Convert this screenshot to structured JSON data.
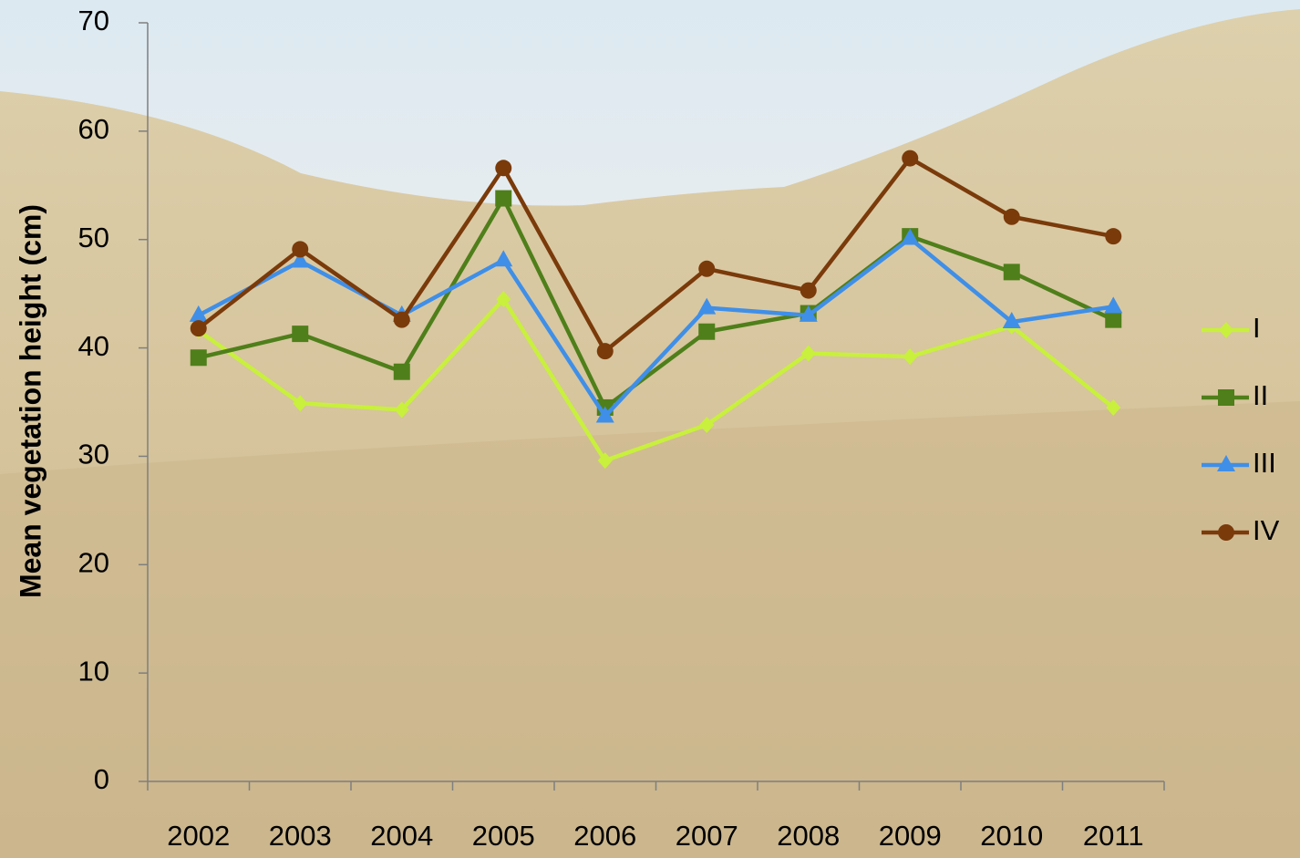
{
  "chart_data": {
    "type": "line",
    "y_label": "Mean vegetation height (cm)",
    "categories": [
      "2002",
      "2003",
      "2004",
      "2005",
      "2006",
      "2007",
      "2008",
      "2009",
      "2010",
      "2011"
    ],
    "series": [
      {
        "name": "I",
        "color": "#c8f03c",
        "marker": "diamond",
        "values": [
          41.6,
          34.9,
          34.3,
          44.5,
          29.6,
          32.9,
          39.5,
          39.2,
          42.0,
          34.5
        ]
      },
      {
        "name": "II",
        "color": "#4f7f1a",
        "marker": "square",
        "values": [
          39.1,
          41.3,
          37.8,
          53.8,
          34.5,
          41.5,
          43.2,
          50.3,
          47.0,
          42.6
        ]
      },
      {
        "name": "III",
        "color": "#3f8fe8",
        "marker": "triangle",
        "values": [
          43.0,
          48.0,
          43.0,
          48.1,
          33.7,
          43.7,
          43.0,
          50.1,
          42.4,
          43.8
        ]
      },
      {
        "name": "IV",
        "color": "#7a3a0a",
        "marker": "circle",
        "values": [
          41.8,
          49.1,
          42.6,
          56.6,
          39.7,
          47.3,
          45.3,
          57.5,
          52.1,
          50.3
        ]
      }
    ],
    "ylim": [
      0,
      70
    ],
    "yticks": [
      0,
      10,
      20,
      30,
      40,
      50,
      60,
      70
    ],
    "grid": false,
    "legend": "right"
  }
}
